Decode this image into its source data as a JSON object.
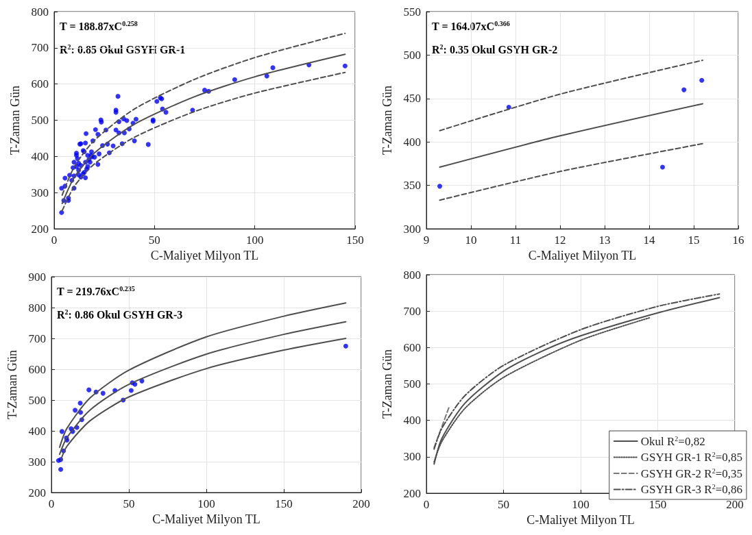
{
  "chart_data": [
    {
      "type": "scatter",
      "xlabel": "C-Maliyet Milyon TL",
      "ylabel": "T-Zaman Gün",
      "xlim": [
        0,
        150
      ],
      "xticks": [
        0,
        50,
        100,
        150
      ],
      "ylim": [
        200,
        800
      ],
      "yticks": [
        200,
        300,
        400,
        500,
        600,
        700,
        800
      ],
      "grid": true,
      "legend": false,
      "annotations": [
        "T = 188.87xC$^{0.258}$",
        "R$^{2}$: 0.85 Okul GSYH GR-1"
      ],
      "series": [
        {
          "marker": "circle",
          "color": "#0000ff",
          "x": [
            3.7,
            4.8,
            7.1,
            7.1,
            3.7,
            5.4,
            9.9,
            5.4,
            7.7,
            9.9,
            12.2,
            15.6,
            14.4,
            9.4,
            11.1,
            13.3,
            16.7,
            9.9,
            12.2,
            15.6,
            17.9,
            21.8,
            11.1,
            15.0,
            11.1,
            16.7,
            20.1,
            22.4,
            13.3,
            12.8,
            15.6,
            15.9,
            19.3,
            24.1,
            27.5,
            21.8,
            20.6,
            25.8,
            26.6,
            29.4,
            33.9,
            30.8,
            32.3,
            35.0,
            37.4,
            39.3,
            40.8,
            36.2,
            34.6,
            32.3,
            30.8,
            30.8,
            31.8,
            23.3,
            23.5,
            40.0,
            46.9,
            49.3,
            49.3,
            51.2,
            52.9,
            53.6,
            54.0,
            55.7,
            18.8,
            18.6,
            14.5,
            8.8,
            13.3,
            15.0,
            11.6,
            17.3,
            16.2,
            12.2,
            18.4,
            75,
            77,
            69,
            90,
            106,
            109,
            127,
            145
          ],
          "values": [
            245,
            278,
            278,
            285,
            312,
            318,
            312,
            340,
            348,
            346,
            349,
            341,
            352,
            369,
            372,
            375,
            372,
            384,
            381,
            384,
            384,
            378,
            403,
            413,
            409,
            403,
            398,
            407,
            435,
            434,
            437,
            463,
            443,
            430,
            410,
            461,
            474,
            473,
            434,
            429,
            435,
            473,
            465,
            465,
            476,
            492,
            503,
            499,
            504,
            496,
            528,
            522,
            566,
            501,
            495,
            443,
            433,
            501,
            497,
            552,
            562,
            559,
            531,
            522,
            399,
            413,
            416,
            334,
            343,
            356,
            394,
            391,
            365,
            362,
            403,
            583,
            580,
            528,
            612,
            622,
            645,
            653,
            650
          ]
        },
        {
          "type": "line",
          "marker": "none",
          "line_style": "solid",
          "color": "#4d4d4d",
          "x": [
            4,
            10,
            20,
            40,
            70,
            100,
            145
          ],
          "values": [
            270,
            342,
            409,
            489,
            565,
            620,
            682
          ]
        },
        {
          "type": "line",
          "marker": "none",
          "line_style": "dashed",
          "color": "#4d4d4d",
          "x": [
            4,
            10,
            20,
            40,
            70,
            100,
            145
          ],
          "values": [
            293,
            371,
            444,
            531,
            613,
            673,
            740
          ]
        },
        {
          "type": "line",
          "marker": "none",
          "line_style": "dashed",
          "color": "#4d4d4d",
          "x": [
            4,
            10,
            20,
            40,
            70,
            100,
            145
          ],
          "values": [
            250,
            317,
            379,
            453,
            524,
            575,
            632
          ]
        }
      ]
    },
    {
      "type": "scatter",
      "xlabel": "C-Maliyet Milyon TL",
      "ylabel": "T-Zaman Gün",
      "xlim": [
        9,
        16
      ],
      "xticks": [
        9,
        10,
        11,
        12,
        13,
        14,
        15,
        16
      ],
      "ylim": [
        300,
        550
      ],
      "yticks": [
        300,
        350,
        400,
        450,
        500,
        550
      ],
      "grid": true,
      "legend": false,
      "annotations": [
        "T = 164.07xC$^{0.366}$",
        "R$^{2}$: 0.35 Okul GSYH GR-2"
      ],
      "series": [
        {
          "marker": "circle",
          "color": "#0000ff",
          "x": [
            9.3,
            10.85,
            14.3,
            14.78,
            15.18
          ],
          "values": [
            349,
            440,
            371,
            460,
            471
          ]
        },
        {
          "type": "line",
          "marker": "none",
          "line_style": "solid",
          "color": "#4d4d4d",
          "x": [
            9.3,
            12,
            15.2
          ],
          "values": [
            371,
            407,
            444
          ]
        },
        {
          "type": "line",
          "marker": "none",
          "line_style": "dashed",
          "color": "#4d4d4d",
          "x": [
            9.3,
            12,
            15.2
          ],
          "values": [
            413,
            455,
            494
          ]
        },
        {
          "type": "line",
          "marker": "none",
          "line_style": "dashed",
          "color": "#4d4d4d",
          "x": [
            9.3,
            12,
            15.2
          ],
          "values": [
            333,
            366,
            398
          ]
        }
      ]
    },
    {
      "type": "scatter",
      "xlabel": "C-Maliyet Milyon TL",
      "ylabel": "T-Zaman Gün",
      "xlim": [
        0,
        200
      ],
      "xticks": [
        0,
        50,
        100,
        150,
        200
      ],
      "ylim": [
        200,
        900
      ],
      "yticks": [
        200,
        300,
        400,
        500,
        600,
        700,
        800,
        900
      ],
      "grid": true,
      "legend": false,
      "annotations": [
        "T = 219.76xC$^{0.235}$",
        "R$^{2}$: 0.86 Okul GSYH GR-3"
      ],
      "series": [
        {
          "marker": "circle",
          "color": "#0000ff",
          "x": [
            4.6,
            6.0,
            6.0,
            7.8,
            6.8,
            9.7,
            10.0,
            12.7,
            13.7,
            16.4,
            15.3,
            18.8,
            18.6,
            19.6,
            24.2,
            28.8,
            33.3,
            41.0,
            46.3,
            51.5,
            52.2,
            53.9,
            58.4,
            190
          ],
          "values": [
            304,
            307,
            275,
            335,
            398,
            377,
            370,
            407,
            398,
            411,
            467,
            460,
            490,
            436,
            533,
            526,
            522,
            531,
            500,
            531,
            556,
            551,
            562,
            675
          ]
        },
        {
          "type": "line",
          "marker": "none",
          "line_style": "solid",
          "color": "#4d4d4d",
          "x": [
            5.3,
            10,
            25,
            50,
            100,
            150,
            190
          ],
          "values": [
            324,
            378,
            468,
            551,
            649,
            713,
            754
          ]
        },
        {
          "type": "line",
          "marker": "none",
          "line_style": "solid",
          "color": "#4d4d4d",
          "x": [
            5.3,
            10,
            25,
            50,
            100,
            150,
            190
          ],
          "values": [
            347,
            408,
            507,
            597,
            705,
            772,
            815
          ]
        },
        {
          "type": "line",
          "marker": "none",
          "line_style": "solid",
          "color": "#4d4d4d",
          "x": [
            6,
            10,
            25,
            50,
            100,
            150,
            190
          ],
          "values": [
            305,
            350,
            433,
            510,
            602,
            662,
            700
          ]
        }
      ]
    },
    {
      "type": "line",
      "xlabel": "C-Maliyet Milyon TL",
      "ylabel": "T-Zaman Gün",
      "xlim": [
        0,
        200
      ],
      "xticks": [
        0,
        50,
        100,
        150,
        200
      ],
      "ylim": [
        200,
        800
      ],
      "yticks": [
        200,
        300,
        400,
        500,
        600,
        700,
        800
      ],
      "grid": true,
      "legend": "bottom right",
      "marker": "none",
      "series": [
        {
          "name": "Okul R$^{2}$=0,82",
          "line_style": "solid",
          "color": "#4d4d4d",
          "x": [
            5,
            10,
            25,
            50,
            75,
            100,
            150,
            190
          ],
          "values": [
            280,
            350,
            447,
            535,
            590,
            632,
            695,
            737
          ]
        },
        {
          "name": "GSYH GR-1 R$^{2}$=0,85",
          "line_style": "dotted",
          "color": "#4d4d4d",
          "x": [
            5,
            10,
            25,
            50,
            100,
            145
          ],
          "values": [
            286,
            342,
            433,
            518,
            620,
            682
          ]
        },
        {
          "name": "GSYH GR-2 R$^{2}$=0,35",
          "line_style": "dashed",
          "color": "#777777",
          "x": [
            5,
            15
          ],
          "values": [
            325,
            440
          ]
        },
        {
          "name": "GSYH GR-3 R$^{2}$=0,86",
          "line_style": "dashdot",
          "color": "#4d4d4d",
          "x": [
            5,
            10,
            25,
            50,
            100,
            150,
            190
          ],
          "values": [
            321,
            378,
            468,
            551,
            649,
            713,
            747
          ]
        }
      ]
    }
  ]
}
